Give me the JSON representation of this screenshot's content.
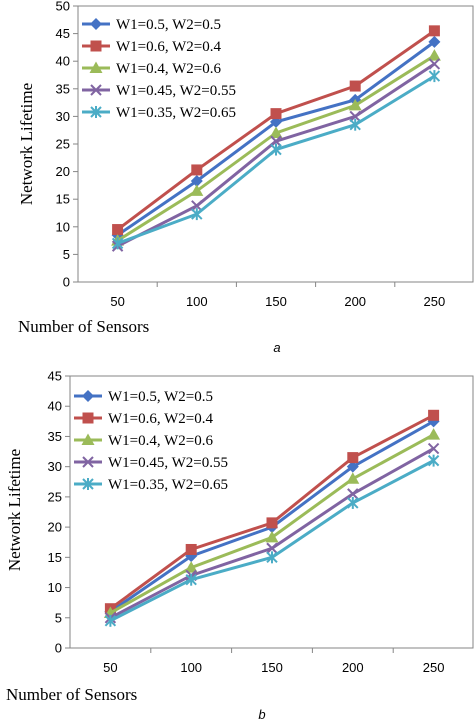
{
  "chart_data": [
    {
      "type": "line",
      "panel_label": "a",
      "xlabel": "Number of Sensors",
      "ylabel": "Network Lifetime",
      "categories": [
        "50",
        "100",
        "150",
        "200",
        "250"
      ],
      "ylim": [
        0,
        50
      ],
      "yticks": [
        0,
        5,
        10,
        15,
        20,
        25,
        30,
        35,
        40,
        45,
        50
      ],
      "grid": false,
      "legend_position": "top-left",
      "series": [
        {
          "name": "W1=0.5, W2=0.5",
          "color": "#4472C4",
          "marker": "diamond",
          "values": [
            8.5,
            18.3,
            29.0,
            33.0,
            43.5
          ]
        },
        {
          "name": "W1=0.6, W2=0.4",
          "color": "#C0504D",
          "marker": "square",
          "values": [
            9.5,
            20.3,
            30.5,
            35.5,
            45.5
          ]
        },
        {
          "name": "W1=0.4, W2=0.6",
          "color": "#9BBB59",
          "marker": "triangle",
          "values": [
            7.5,
            16.5,
            27.0,
            32.0,
            41.0
          ]
        },
        {
          "name": "W1=0.45, W2=0.55",
          "color": "#8064A2",
          "marker": "x",
          "values": [
            6.5,
            13.8,
            25.5,
            30.0,
            39.5
          ]
        },
        {
          "name": "W1=0.35, W2=0.65",
          "color": "#4BACC6",
          "marker": "star",
          "values": [
            7.0,
            12.3,
            24.0,
            28.5,
            37.3
          ]
        }
      ]
    },
    {
      "type": "line",
      "panel_label": "b",
      "xlabel": "Number of Sensors",
      "ylabel": "Network Lifetime",
      "categories": [
        "50",
        "100",
        "150",
        "200",
        "250"
      ],
      "ylim": [
        0,
        45
      ],
      "yticks": [
        0,
        5,
        10,
        15,
        20,
        25,
        30,
        35,
        40,
        45
      ],
      "grid": false,
      "legend_position": "top-left",
      "series": [
        {
          "name": "W1=0.5, W2=0.5",
          "color": "#4472C4",
          "marker": "diamond",
          "values": [
            6.0,
            15.2,
            20.0,
            30.0,
            37.5
          ]
        },
        {
          "name": "W1=0.6, W2=0.4",
          "color": "#C0504D",
          "marker": "square",
          "values": [
            6.5,
            16.3,
            20.7,
            31.5,
            38.5
          ]
        },
        {
          "name": "W1=0.4, W2=0.6",
          "color": "#9BBB59",
          "marker": "triangle",
          "values": [
            5.8,
            13.3,
            18.3,
            28.0,
            35.3
          ]
        },
        {
          "name": "W1=0.45, W2=0.55",
          "color": "#8064A2",
          "marker": "x",
          "values": [
            5.0,
            12.0,
            16.5,
            25.5,
            33.0
          ]
        },
        {
          "name": "W1=0.35, W2=0.65",
          "color": "#4BACC6",
          "marker": "star",
          "values": [
            4.5,
            11.3,
            15.0,
            24.0,
            31.0
          ]
        }
      ]
    }
  ]
}
